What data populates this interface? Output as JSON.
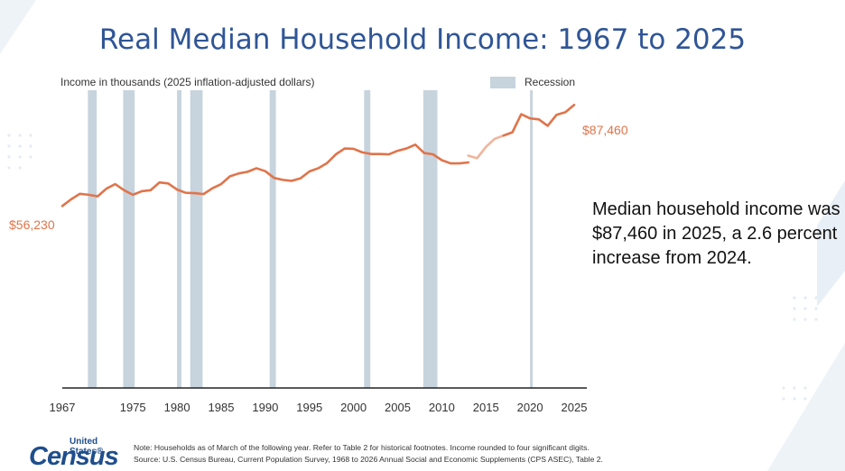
{
  "title": "Real Median Household Income: 1967 to 2025",
  "y_axis_label": "Income in thousands (2025 inflation-adjusted dollars)",
  "legend": {
    "recession_label": "Recession"
  },
  "labels": {
    "start": "$56,230",
    "end": "$87,460"
  },
  "callout": "Median household income was $87,460 in 2025, a 2.6 percent increase from 2024.",
  "logo": {
    "top": "United States®",
    "main": "Census"
  },
  "footnotes": {
    "note": "Note: Households as of March of the following year. Refer to Table 2 for historical footnotes. Income rounded to four significant digits.",
    "source": "Source: U.S. Census Bureau, Current Population Survey, 1968 to 2026 Annual Social and Economic Supplements (CPS ASEC), Table 2."
  },
  "colors": {
    "title": "#2f5597",
    "line": "#e0744b",
    "line_light": "#f0b49c",
    "recession": "#c7d3dd",
    "axis": "#222222"
  },
  "chart_data": {
    "type": "line",
    "x_ticks": [
      1967,
      1975,
      1980,
      1985,
      1990,
      1995,
      2000,
      2005,
      2010,
      2015,
      2020,
      2025
    ],
    "xlim": [
      1967,
      2025
    ],
    "ylim": [
      0,
      92
    ],
    "grid": false,
    "legend_position": "top-right",
    "recessions": [
      [
        1969.9,
        1970.9
      ],
      [
        1973.9,
        1975.2
      ],
      [
        1980.0,
        1980.5
      ],
      [
        1981.5,
        1982.9
      ],
      [
        1990.5,
        1991.2
      ],
      [
        2001.2,
        2001.9
      ],
      [
        2007.9,
        2009.5
      ],
      [
        2020.0,
        2020.3
      ]
    ],
    "series": [
      {
        "style": "solid",
        "points": [
          [
            1967,
            56.23
          ],
          [
            1968,
            58.3
          ],
          [
            1969,
            60.0
          ],
          [
            1970,
            59.7
          ],
          [
            1971,
            59.2
          ],
          [
            1972,
            61.6
          ],
          [
            1973,
            63.0
          ],
          [
            1974,
            61.1
          ],
          [
            1975,
            59.7
          ],
          [
            1976,
            60.8
          ],
          [
            1977,
            61.1
          ],
          [
            1978,
            63.5
          ],
          [
            1979,
            63.2
          ],
          [
            1980,
            61.3
          ],
          [
            1981,
            60.3
          ],
          [
            1982,
            60.2
          ],
          [
            1983,
            59.9
          ],
          [
            1984,
            61.7
          ],
          [
            1985,
            63.0
          ],
          [
            1986,
            65.4
          ],
          [
            1987,
            66.3
          ],
          [
            1988,
            66.8
          ],
          [
            1989,
            67.9
          ],
          [
            1990,
            67.0
          ],
          [
            1991,
            64.9
          ],
          [
            1992,
            64.3
          ],
          [
            1993,
            64.0
          ],
          [
            1994,
            64.8
          ],
          [
            1995,
            66.9
          ],
          [
            1996,
            67.9
          ],
          [
            1997,
            69.5
          ],
          [
            1998,
            72.2
          ],
          [
            1999,
            74.0
          ],
          [
            2000,
            73.9
          ],
          [
            2001,
            72.8
          ],
          [
            2002,
            72.3
          ],
          [
            2003,
            72.3
          ],
          [
            2004,
            72.2
          ],
          [
            2005,
            73.3
          ],
          [
            2006,
            74.0
          ],
          [
            2007,
            75.2
          ],
          [
            2008,
            72.6
          ],
          [
            2009,
            72.2
          ],
          [
            2010,
            70.4
          ],
          [
            2011,
            69.4
          ],
          [
            2012,
            69.4
          ],
          [
            2013,
            69.7
          ]
        ]
      },
      {
        "style": "light",
        "points": [
          [
            2013,
            71.8
          ],
          [
            2014,
            71.0
          ],
          [
            2015,
            74.5
          ],
          [
            2016,
            77.0
          ],
          [
            2017,
            78.0
          ]
        ]
      },
      {
        "style": "solid",
        "points": [
          [
            2017,
            78.0
          ],
          [
            2018,
            79.0
          ],
          [
            2019,
            84.6
          ],
          [
            2020,
            83.3
          ],
          [
            2021,
            83.0
          ],
          [
            2022,
            81.0
          ],
          [
            2023,
            84.4
          ],
          [
            2024,
            85.2
          ],
          [
            2025,
            87.46
          ]
        ]
      }
    ]
  }
}
